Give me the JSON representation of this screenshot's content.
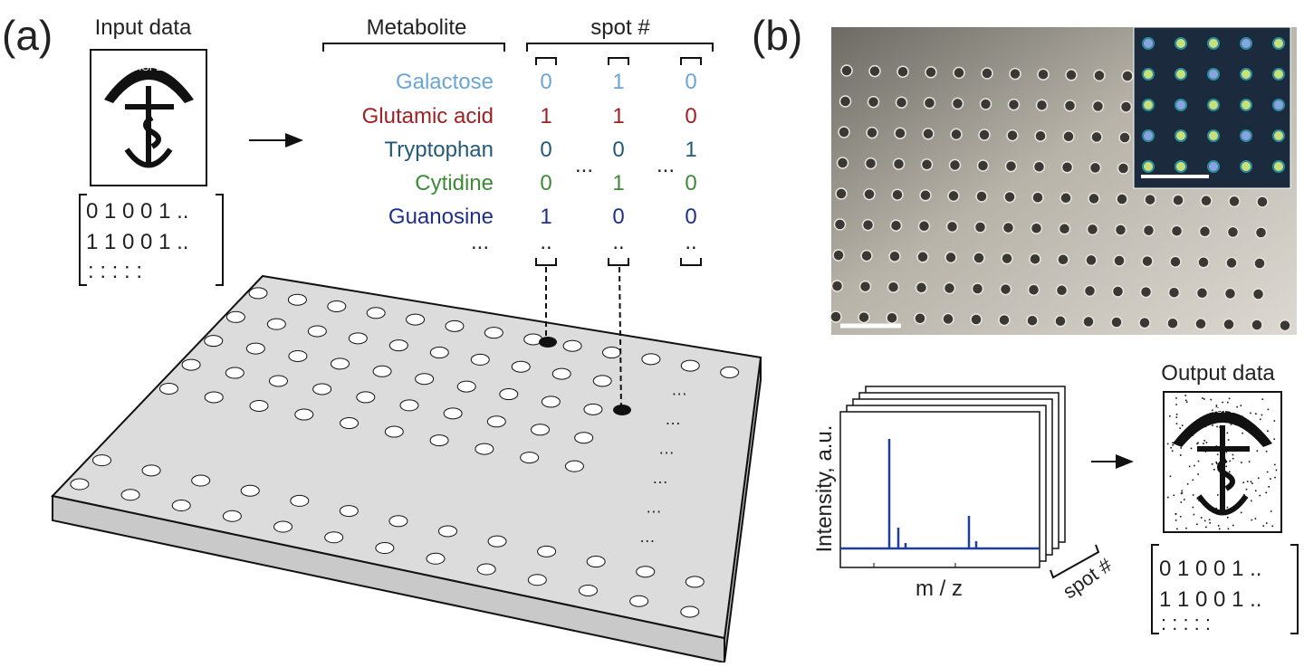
{
  "panel_a": {
    "label": "(a)",
    "input_title": "Input data",
    "image_text": "HOPE",
    "matrix": [
      "0 1 0 0 1 ..",
      "1 1 0 0 1 ..",
      ":  :  :  :  :"
    ],
    "table": {
      "metabolite_header": "Metabolite",
      "spot_header": "spot #",
      "rows": [
        {
          "name": "Galactose",
          "color": "#6aa6d6",
          "values": [
            "0",
            "1",
            "0"
          ]
        },
        {
          "name": "Glutamic acid",
          "color": "#a31f24",
          "values": [
            "1",
            "1",
            "0"
          ]
        },
        {
          "name": "Tryptophan",
          "color": "#235a78",
          "values": [
            "0",
            "0",
            "1"
          ]
        },
        {
          "name": "Cytidine",
          "color": "#3d8b37",
          "values": [
            "0",
            "1",
            "0"
          ]
        },
        {
          "name": "Guanosine",
          "color": "#1f2f8a",
          "values": [
            "1",
            "0",
            "0"
          ]
        }
      ],
      "gap": "...",
      "last_row": [
        "...",
        "..",
        "..",
        ".."
      ]
    }
  },
  "panel_b": {
    "label": "(b)",
    "y_label": "Intensity, a.u.",
    "x_label": "m / z",
    "stack_label": "spot #",
    "output_title": "Output data",
    "image_text": "HOPE",
    "matrix": [
      "0 1 0 0 1 ..",
      "1 1 0 0 1 ..",
      ":  :  :  :  :"
    ]
  }
}
